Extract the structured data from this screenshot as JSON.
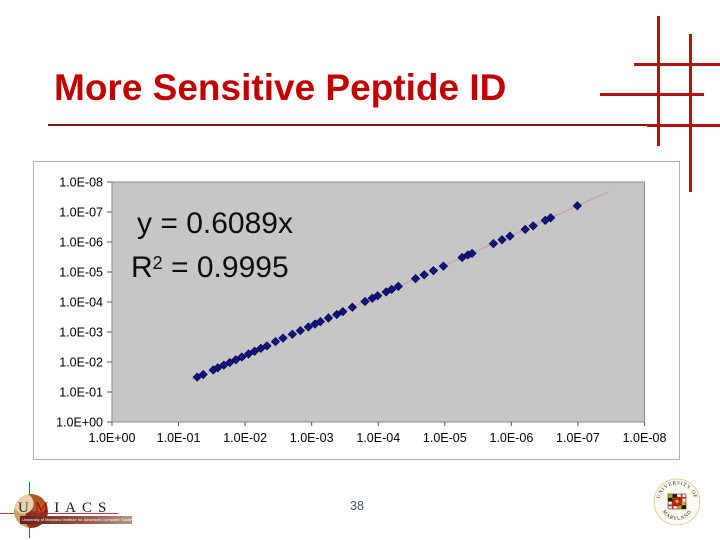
{
  "slide": {
    "title": "More Sensitive Peptide ID"
  },
  "theme": {
    "title-red": "#c00000",
    "line-red": "#b51212",
    "underline-red": "#8e1515",
    "plot-bg": "#c6c6c6",
    "point-navy": "#12127d",
    "trend-pink": "#c9a6a6",
    "pagenum-color": "#44546a"
  },
  "chart_data": {
    "type": "scatter",
    "title": "",
    "xlabel": "",
    "ylabel": "",
    "x_axis": {
      "scale": "log-reversed",
      "direction": "left-to-right, 1.0E+00 down to 1.0E-08",
      "ticks": [
        "1.0E+00",
        "1.0E-01",
        "1.0E-02",
        "1.0E-03",
        "1.0E-04",
        "1.0E-05",
        "1.0E-06",
        "1.0E-07",
        "1.0E-08"
      ]
    },
    "y_axis": {
      "scale": "log-reversed",
      "direction": "top-to-bottom, 1.0E-08 down to 1.0E+00",
      "ticks": [
        "1.0E-08",
        "1.0E-07",
        "1.0E-06",
        "1.0E-05",
        "1.0E-04",
        "1.0E-03",
        "1.0E-02",
        "1.0E-01",
        "1.0E+00"
      ]
    },
    "annotations": {
      "equation": "y = 0.6089x",
      "r2_prefix": "R",
      "r2_sup": "2",
      "r2_rest": " = 0.9995"
    },
    "legend": "none",
    "grid": "off",
    "marker": "navy diamond",
    "trendline": {
      "slope": 0.6089,
      "x_from": 0.062,
      "x_to": 3.4e-08,
      "color": "#c9a6a6"
    },
    "points": [
      [
        0.0525,
        0.032
      ],
      [
        0.0427,
        0.026
      ],
      [
        0.0302,
        0.0184
      ],
      [
        0.0257,
        0.0156
      ],
      [
        0.0209,
        0.0127
      ],
      [
        0.017,
        0.0104
      ],
      [
        0.0138,
        0.0084
      ],
      [
        0.0112,
        0.0068
      ],
      [
        0.0089,
        0.0054
      ],
      [
        0.0072,
        0.0044
      ],
      [
        0.0058,
        0.0035
      ],
      [
        0.0047,
        0.0029
      ],
      [
        0.0035,
        0.0021
      ],
      [
        0.0027,
        0.0016
      ],
      [
        0.00195,
        0.00119
      ],
      [
        0.00148,
        0.0009
      ],
      [
        0.00112,
        0.00068
      ],
      [
        0.00089,
        0.00054
      ],
      [
        0.00074,
        0.00045
      ],
      [
        0.00056,
        0.00034
      ],
      [
        0.00042,
        0.00026
      ],
      [
        0.00034,
        0.00021
      ],
      [
        0.000245,
        0.000149
      ],
      [
        0.000158,
        9.6e-05
      ],
      [
        0.000123,
        7.5e-05
      ],
      [
        0.000102,
        6.2e-05
      ],
      [
        7.6e-05,
        4.6e-05
      ],
      [
        6.3e-05,
        3.8e-05
      ],
      [
        5e-05,
        3e-05
      ],
      [
        2.75e-05,
        1.67e-05
      ],
      [
        2.04e-05,
        1.24e-05
      ],
      [
        1.48e-05,
        9e-06
      ],
      [
        1.05e-05,
        6.4e-06
      ],
      [
        5.5e-06,
        3.3e-06
      ],
      [
        4.5e-06,
        2.7e-06
      ],
      [
        3.9e-06,
        2.4e-06
      ],
      [
        1.86e-06,
        1.13e-06
      ],
      [
        1.38e-06,
        8.4e-07
      ],
      [
        1.05e-06,
        6.4e-07
      ],
      [
        6.2e-07,
        3.8e-07
      ],
      [
        4.7e-07,
        2.9e-07
      ],
      [
        3.1e-07,
        1.9e-07
      ],
      [
        2.57e-07,
        1.56e-07
      ],
      [
        1.02e-07,
        6.2e-08
      ]
    ]
  },
  "footer": {
    "page_number": "38",
    "umiacs": {
      "letter_u": "U",
      "letter_m": "M",
      "letters_rest": "IACS",
      "tagline": "University of Maryland Institute for Advanced Computer Studies"
    },
    "seal": {
      "top_text": "UNIVERSITY OF",
      "bottom_text": "MARYLAND"
    }
  }
}
